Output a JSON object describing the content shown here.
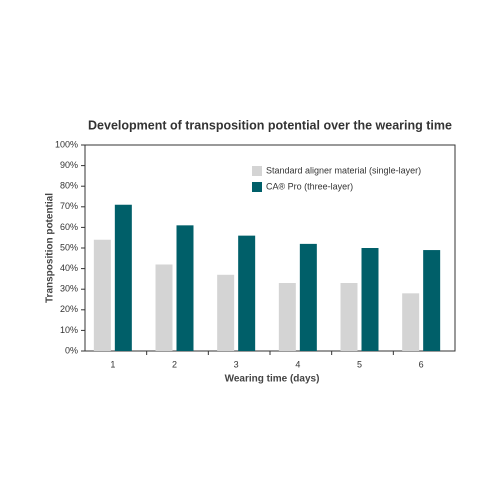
{
  "chart_data": {
    "type": "bar",
    "title": "Development of transposition potential over the wearing time",
    "x_label": "Wearing time (days)",
    "y_label": "Transposition potential",
    "categories": [
      "1",
      "2",
      "3",
      "4",
      "5",
      "6"
    ],
    "series": [
      {
        "name": "Standard aligner material (single-layer)",
        "color": "#d4d4d4",
        "values": [
          54,
          42,
          37,
          33,
          33,
          28
        ]
      },
      {
        "name": "CA® Pro (three-layer)",
        "color": "#005f69",
        "values": [
          71,
          61,
          56,
          52,
          50,
          49
        ]
      }
    ],
    "ylim": [
      0,
      100
    ],
    "yticks": [
      {
        "value": 0,
        "label": "0%"
      },
      {
        "value": 10,
        "label": "10%"
      },
      {
        "value": 20,
        "label": "20%"
      },
      {
        "value": 30,
        "label": "30%"
      },
      {
        "value": 40,
        "label": "40%"
      },
      {
        "value": 50,
        "label": "50%"
      },
      {
        "value": 60,
        "label": "60%"
      },
      {
        "value": 70,
        "label": "70%"
      },
      {
        "value": 80,
        "label": "80%"
      },
      {
        "value": 90,
        "label": "90%"
      },
      {
        "value": 100,
        "label": "100%"
      }
    ],
    "legend": "top-right"
  }
}
